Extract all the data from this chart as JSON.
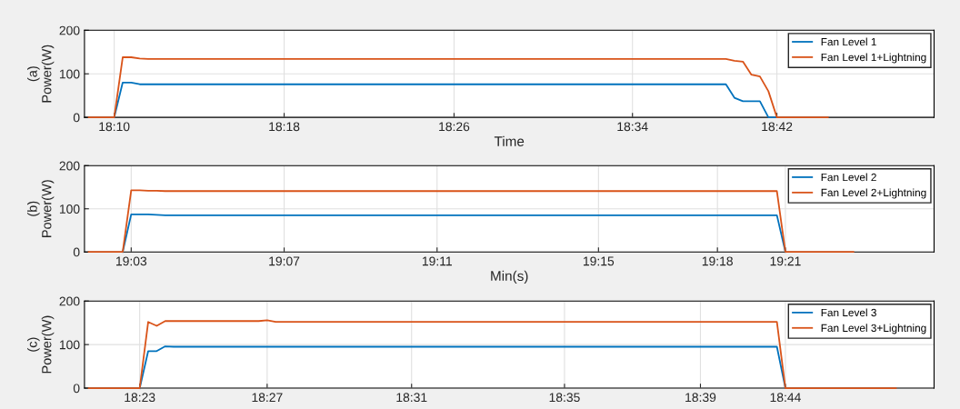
{
  "chart_data": [
    {
      "type": "line",
      "ylabel": "(a)\nPower(W)",
      "xlabel": "Time",
      "ylim": [
        0,
        200
      ],
      "yticks": [
        0,
        100,
        200
      ],
      "grid": true,
      "legend": "top right",
      "categories": [
        null,
        null,
        null,
        "18:10",
        null,
        null,
        null,
        null,
        null,
        null,
        null,
        null,
        null,
        null,
        null,
        null,
        null,
        null,
        null,
        null,
        null,
        null,
        null,
        "18:18",
        null,
        null,
        null,
        null,
        null,
        null,
        null,
        null,
        null,
        null,
        null,
        null,
        null,
        null,
        null,
        null,
        null,
        null,
        null,
        "18:26",
        null,
        null,
        null,
        null,
        null,
        null,
        null,
        null,
        null,
        null,
        null,
        null,
        null,
        null,
        null,
        null,
        null,
        null,
        null,
        null,
        "18:34",
        null,
        null,
        null,
        null,
        null,
        null,
        null,
        null,
        null,
        null,
        null,
        null,
        null,
        null,
        null,
        null,
        "18:42",
        null,
        null,
        null,
        null,
        null,
        null,
        null,
        null,
        null,
        null,
        null,
        null,
        null,
        null,
        null,
        null,
        null,
        null
      ],
      "series": [
        {
          "name": "Fan Level 1",
          "color": "#0072bd",
          "values": [
            null,
            null,
            null,
            0,
            80,
            80,
            76,
            76,
            76,
            76,
            76,
            76,
            76,
            76,
            76,
            76,
            76,
            76,
            76,
            76,
            76,
            76,
            76,
            76,
            76,
            76,
            76,
            76,
            76,
            76,
            76,
            76,
            76,
            76,
            76,
            76,
            76,
            76,
            76,
            76,
            76,
            76,
            76,
            76,
            76,
            76,
            76,
            76,
            76,
            76,
            76,
            76,
            76,
            76,
            76,
            76,
            76,
            76,
            76,
            76,
            76,
            76,
            76,
            76,
            76,
            76,
            76,
            76,
            76,
            76,
            76,
            76,
            76,
            76,
            76,
            76,
            45,
            37,
            37,
            37,
            0,
            0,
            null,
            null,
            null,
            null,
            null,
            null,
            null,
            null,
            null,
            null,
            null,
            null,
            null,
            null,
            null,
            null,
            null,
            null
          ]
        },
        {
          "name": "Fan Level 1+Lightning",
          "color": "#d95319",
          "values": [
            0,
            0,
            0,
            0,
            138,
            138,
            135,
            134,
            134,
            134,
            134,
            134,
            134,
            134,
            134,
            134,
            134,
            134,
            134,
            134,
            134,
            134,
            134,
            134,
            134,
            134,
            134,
            134,
            134,
            134,
            134,
            134,
            134,
            134,
            134,
            134,
            134,
            134,
            134,
            134,
            134,
            134,
            134,
            134,
            134,
            134,
            134,
            134,
            134,
            134,
            134,
            134,
            134,
            134,
            134,
            134,
            134,
            134,
            134,
            134,
            134,
            134,
            134,
            134,
            134,
            134,
            134,
            134,
            134,
            134,
            134,
            134,
            134,
            134,
            134,
            134,
            130,
            128,
            98,
            94,
            60,
            0,
            0,
            0,
            0,
            0,
            0,
            0,
            null,
            null,
            null,
            null,
            null,
            null,
            null,
            null,
            null,
            null,
            null,
            null
          ]
        }
      ]
    },
    {
      "type": "line",
      "ylabel": "(b)\nPower(W)",
      "xlabel": "Min(s)",
      "ylim": [
        0,
        200
      ],
      "yticks": [
        0,
        100,
        200
      ],
      "grid": true,
      "legend": "top right",
      "categories": [
        null,
        null,
        null,
        null,
        null,
        "19:03",
        null,
        null,
        null,
        null,
        null,
        null,
        null,
        null,
        null,
        null,
        null,
        null,
        null,
        null,
        null,
        null,
        null,
        "19:07",
        null,
        null,
        null,
        null,
        null,
        null,
        null,
        null,
        null,
        null,
        null,
        null,
        null,
        null,
        null,
        null,
        null,
        "19:11",
        null,
        null,
        null,
        null,
        null,
        null,
        null,
        null,
        null,
        null,
        null,
        null,
        null,
        null,
        null,
        null,
        null,
        null,
        "19:15",
        null,
        null,
        null,
        null,
        null,
        null,
        null,
        null,
        null,
        null,
        null,
        null,
        null,
        "19:18",
        null,
        null,
        null,
        null,
        null,
        null,
        null,
        "19:21",
        null,
        null,
        null,
        null,
        null,
        null,
        null,
        null,
        null,
        null,
        null,
        null,
        null,
        null,
        null,
        null,
        null
      ],
      "series": [
        {
          "name": "Fan Level 2",
          "color": "#0072bd",
          "values": [
            null,
            null,
            null,
            null,
            0,
            87,
            87,
            87,
            86,
            85,
            85,
            85,
            85,
            85,
            85,
            85,
            85,
            85,
            85,
            85,
            85,
            85,
            85,
            85,
            85,
            85,
            85,
            85,
            85,
            85,
            85,
            85,
            85,
            85,
            85,
            85,
            85,
            85,
            85,
            85,
            85,
            85,
            85,
            85,
            85,
            85,
            85,
            85,
            85,
            85,
            85,
            85,
            85,
            85,
            85,
            85,
            85,
            85,
            85,
            85,
            85,
            85,
            85,
            85,
            85,
            85,
            85,
            85,
            85,
            85,
            85,
            85,
            85,
            85,
            85,
            85,
            85,
            85,
            85,
            85,
            85,
            85,
            0,
            null,
            null,
            null,
            null,
            null,
            null,
            null,
            null,
            null,
            null,
            null,
            null,
            null,
            null,
            null,
            null,
            null
          ]
        },
        {
          "name": "Fan Level 2+Lightning",
          "color": "#d95319",
          "values": [
            0,
            0,
            0,
            0,
            0,
            143,
            143,
            142,
            142,
            141,
            141,
            141,
            141,
            141,
            141,
            141,
            141,
            141,
            141,
            141,
            141,
            141,
            141,
            141,
            141,
            141,
            141,
            141,
            141,
            141,
            141,
            141,
            141,
            141,
            141,
            141,
            141,
            141,
            141,
            141,
            141,
            141,
            141,
            141,
            141,
            141,
            141,
            141,
            141,
            141,
            141,
            141,
            141,
            141,
            141,
            141,
            141,
            141,
            141,
            141,
            141,
            141,
            141,
            141,
            141,
            141,
            141,
            141,
            141,
            141,
            141,
            141,
            141,
            141,
            141,
            141,
            141,
            141,
            141,
            141,
            141,
            141,
            0,
            0,
            0,
            0,
            0,
            0,
            0,
            0,
            0,
            null,
            null,
            null,
            null,
            null,
            null,
            null,
            null,
            null
          ]
        }
      ]
    },
    {
      "type": "line",
      "ylabel": "(c)\nPower(W)",
      "ylim": [
        0,
        200
      ],
      "yticks": [
        0,
        100,
        200
      ],
      "grid": true,
      "legend": "top right",
      "categories": [
        null,
        null,
        null,
        null,
        null,
        null,
        "18:23",
        null,
        null,
        null,
        null,
        null,
        null,
        null,
        null,
        null,
        null,
        null,
        null,
        null,
        null,
        "18:27",
        null,
        null,
        null,
        null,
        null,
        null,
        null,
        null,
        null,
        null,
        null,
        null,
        null,
        null,
        null,
        null,
        "18:31",
        null,
        null,
        null,
        null,
        null,
        null,
        null,
        null,
        null,
        null,
        null,
        null,
        null,
        null,
        null,
        null,
        null,
        "18:35",
        null,
        null,
        null,
        null,
        null,
        null,
        null,
        null,
        null,
        null,
        null,
        null,
        null,
        null,
        null,
        "18:39",
        null,
        null,
        null,
        null,
        null,
        null,
        null,
        null,
        null,
        "18:44",
        null,
        null,
        null,
        null,
        null,
        null,
        null,
        null,
        null,
        null,
        null,
        null,
        null,
        null,
        null,
        null,
        null
      ],
      "series": [
        {
          "name": "Fan Level 3",
          "color": "#0072bd",
          "values": [
            null,
            null,
            null,
            null,
            null,
            null,
            0,
            85,
            85,
            96,
            95,
            95,
            95,
            95,
            95,
            95,
            95,
            95,
            95,
            95,
            95,
            95,
            95,
            95,
            95,
            95,
            95,
            95,
            95,
            95,
            95,
            95,
            95,
            95,
            95,
            95,
            95,
            95,
            95,
            95,
            95,
            95,
            95,
            95,
            95,
            95,
            95,
            95,
            95,
            95,
            95,
            95,
            95,
            95,
            95,
            95,
            95,
            95,
            95,
            95,
            95,
            95,
            95,
            95,
            95,
            95,
            95,
            95,
            95,
            95,
            95,
            95,
            95,
            95,
            95,
            95,
            95,
            95,
            95,
            95,
            95,
            95,
            0,
            null,
            null,
            null,
            null,
            null,
            null,
            null,
            null,
            null,
            null,
            null,
            null,
            null,
            null,
            null,
            null,
            null
          ]
        },
        {
          "name": "Fan Level 3+Lightning",
          "color": "#d95319",
          "values": [
            0,
            0,
            0,
            0,
            0,
            0,
            0,
            152,
            143,
            154,
            154,
            154,
            154,
            154,
            154,
            154,
            154,
            154,
            154,
            154,
            154,
            156,
            152,
            152,
            152,
            152,
            152,
            152,
            152,
            152,
            152,
            152,
            152,
            152,
            152,
            152,
            152,
            152,
            152,
            152,
            152,
            152,
            152,
            152,
            152,
            152,
            152,
            152,
            152,
            152,
            152,
            152,
            152,
            152,
            152,
            152,
            152,
            152,
            152,
            152,
            152,
            152,
            152,
            152,
            152,
            152,
            152,
            152,
            152,
            152,
            152,
            152,
            152,
            152,
            152,
            152,
            152,
            152,
            152,
            152,
            152,
            152,
            0,
            0,
            0,
            0,
            0,
            0,
            0,
            0,
            0,
            0,
            0,
            0,
            0,
            0,
            null,
            null,
            null,
            null
          ]
        }
      ]
    }
  ]
}
